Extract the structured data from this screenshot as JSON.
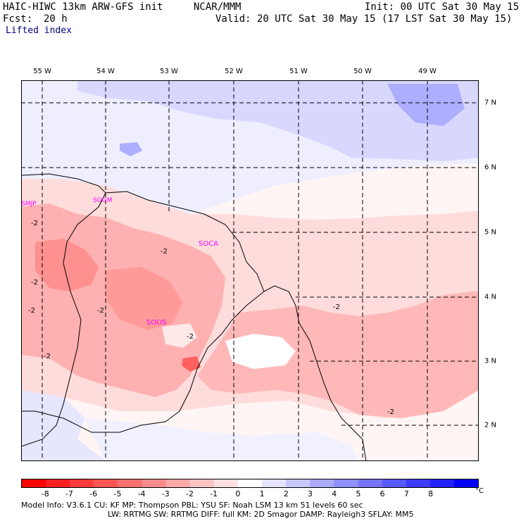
{
  "header": {
    "model_line": "HAIC-HIWC 13km ARW-GFS init",
    "org": "NCAR/MMM",
    "init": "Init: 00 UTC Sat 30 May 15",
    "fcst_label": "Fcst:",
    "fcst_value": "20 h",
    "valid": "Valid: 20 UTC Sat 30 May 15 (17 LST Sat 30 May 15)",
    "field": "Lifted index"
  },
  "map": {
    "lon_labels": [
      "55 W",
      "54 W",
      "53 W",
      "52 W",
      "51 W",
      "50 W",
      "49 W"
    ],
    "lat_labels": [
      "7 N",
      "6 N",
      "5 N",
      "4 N",
      "3 N",
      "2 N"
    ],
    "stations": [
      "SMJP",
      "SOGM",
      "SOCA",
      "SOOS"
    ],
    "contour_label": "-2"
  },
  "colorbar": {
    "ticks": [
      "-8",
      "-7",
      "-6",
      "-5",
      "-4",
      "-3",
      "-2",
      "-1",
      "0",
      "1",
      "2",
      "3",
      "4",
      "5",
      "6",
      "7",
      "8"
    ],
    "unit": "°C",
    "colors": [
      "#ff0000",
      "#ff2020",
      "#ff3a3a",
      "#ff5555",
      "#ff7070",
      "#ff8c8c",
      "#ffa8a8",
      "#ffc4c4",
      "#ffe0e0",
      "#ffffff",
      "#e4e4ff",
      "#c8c8ff",
      "#acacff",
      "#9090ff",
      "#7474ff",
      "#5858ff",
      "#3c3cff",
      "#2020ff",
      "#0000ff"
    ]
  },
  "footer": {
    "line1": "Model Info: V3.6.1     CU: KF       MP: Thompson      PBL: YSU       SF: Noah LSM      13 km    51 levels   60 sec",
    "line2": "LW: RRTMG    SW: RRTMG   DIFF: full    KM: 2D Smagor DAMP: Rayleigh3   SFLAY: MM5"
  }
}
